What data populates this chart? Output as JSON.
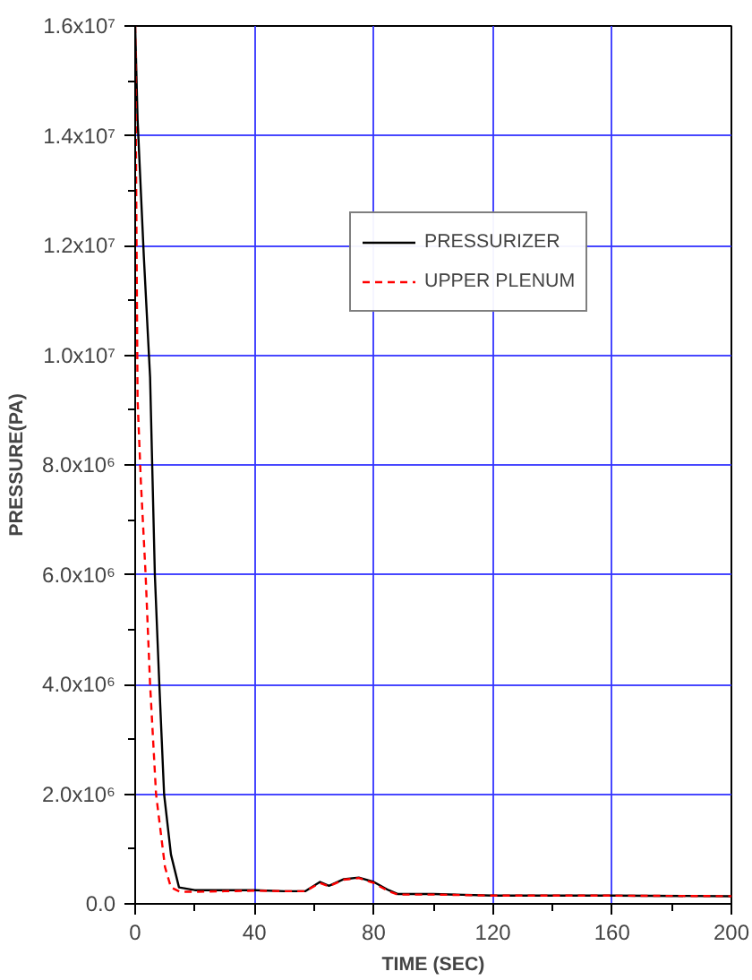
{
  "chart_data": {
    "type": "line",
    "xlabel": "TIME (SEC)",
    "ylabel": "PRESSURE(PA)",
    "xlim": [
      0,
      200
    ],
    "xticks": [
      0,
      40,
      80,
      120,
      160,
      200
    ],
    "ylim": [
      0,
      16000000
    ],
    "yticks": [
      {
        "value": 0,
        "label": "0.0"
      },
      {
        "value": 2000000,
        "label": "2.0x10⁶"
      },
      {
        "value": 4000000,
        "label": "4.0x10⁶"
      },
      {
        "value": 6000000,
        "label": "6.0x10⁶"
      },
      {
        "value": 8000000,
        "label": "8.0x10⁶"
      },
      {
        "value": 10000000,
        "label": "1.0x10⁷"
      },
      {
        "value": 12000000,
        "label": "1.2x10⁷"
      },
      {
        "value": 14000000,
        "label": "1.4x10⁷"
      },
      {
        "value": 16000000,
        "label": "1.6x10⁷"
      }
    ],
    "grid": true,
    "legend": "top right",
    "marker": "none",
    "series": [
      {
        "name": "PRESSURIZER",
        "color": "#000000",
        "line_style": "solid",
        "x": [
          0,
          0.8,
          2.9,
          5,
          6.6,
          8.1,
          9.7,
          12,
          14.7,
          20,
          30,
          40,
          50,
          57,
          62,
          65,
          70,
          75,
          80,
          85,
          88,
          100,
          120,
          160,
          200
        ],
        "values": [
          16000000,
          14300000,
          11800000,
          9600000,
          6000000,
          4000000,
          2000000,
          900000,
          300000,
          250000,
          250000,
          250000,
          230000,
          230000,
          400000,
          330000,
          450000,
          480000,
          400000,
          250000,
          180000,
          180000,
          150000,
          150000,
          140000
        ]
      },
      {
        "name": "UPPER PLENUM",
        "color": "#ff0000",
        "line_style": "dashed",
        "x": [
          0,
          0.8,
          1.9,
          3.5,
          5,
          7,
          10,
          12,
          15,
          20,
          30,
          40,
          50,
          57,
          62,
          65,
          70,
          75,
          80,
          85,
          88,
          100,
          120,
          160,
          200
        ],
        "values": [
          16000000,
          9200000,
          7700000,
          6000000,
          4000000,
          2000000,
          670000,
          300000,
          220000,
          220000,
          230000,
          240000,
          230000,
          230000,
          380000,
          320000,
          440000,
          470000,
          380000,
          230000,
          170000,
          170000,
          150000,
          150000,
          140000
        ]
      }
    ]
  }
}
